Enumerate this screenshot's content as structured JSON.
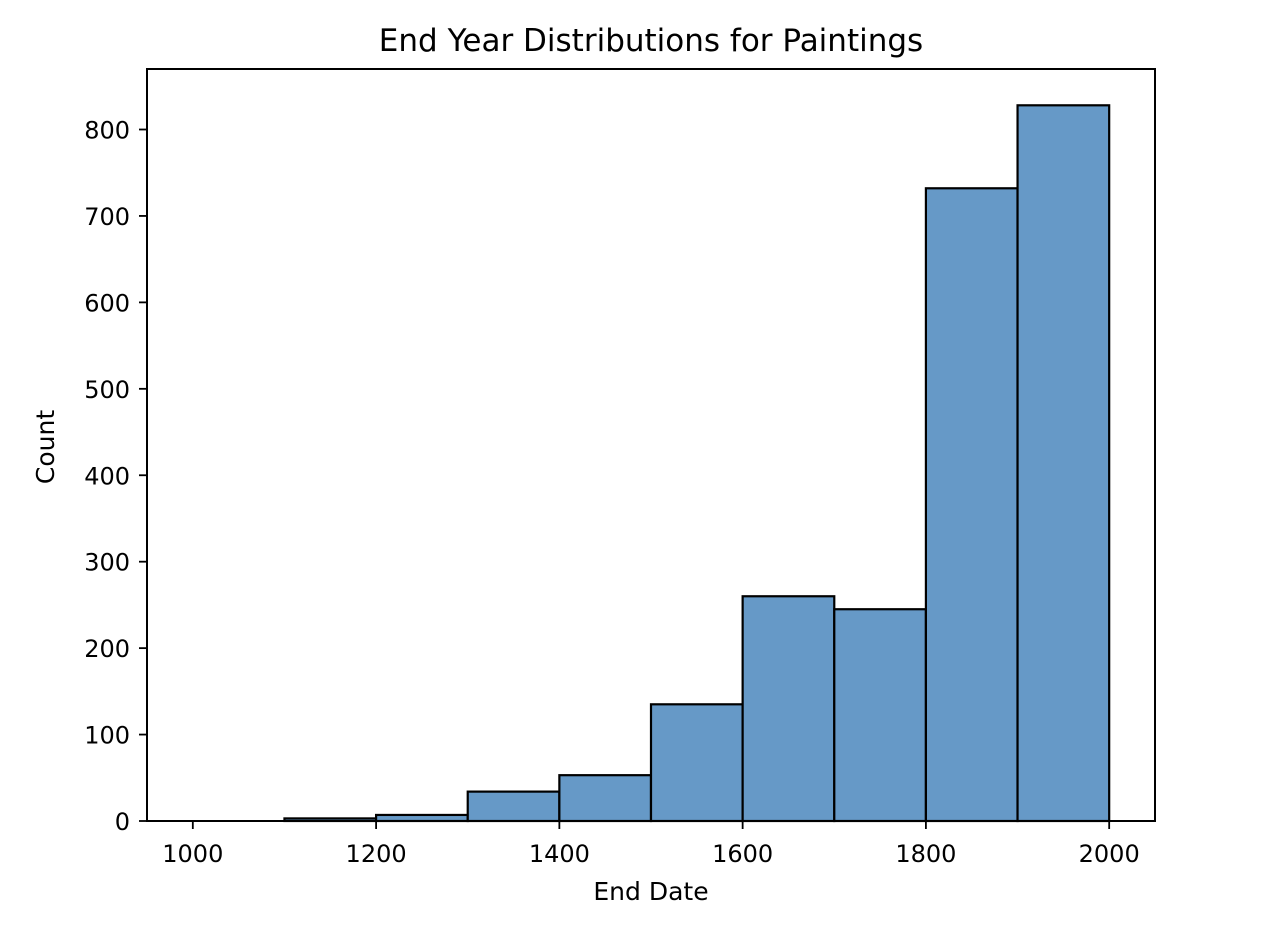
{
  "chart_data": {
    "type": "bar",
    "title": "End Year Distributions for Paintings",
    "xlabel": "End Date",
    "ylabel": "Count",
    "xlim": [
      950,
      2050
    ],
    "ylim": [
      0,
      870
    ],
    "xticks": [
      1000,
      1200,
      1400,
      1600,
      1800,
      2000
    ],
    "yticks": [
      0,
      100,
      200,
      300,
      400,
      500,
      600,
      700,
      800
    ],
    "bins": [
      {
        "start": 1000,
        "end": 1100,
        "count": 0
      },
      {
        "start": 1100,
        "end": 1200,
        "count": 3
      },
      {
        "start": 1200,
        "end": 1300,
        "count": 7
      },
      {
        "start": 1300,
        "end": 1400,
        "count": 34
      },
      {
        "start": 1400,
        "end": 1500,
        "count": 53
      },
      {
        "start": 1500,
        "end": 1600,
        "count": 135
      },
      {
        "start": 1600,
        "end": 1700,
        "count": 260
      },
      {
        "start": 1700,
        "end": 1800,
        "count": 245
      },
      {
        "start": 1800,
        "end": 1900,
        "count": 732
      },
      {
        "start": 1900,
        "end": 2000,
        "count": 828
      }
    ],
    "grid": false,
    "colors": {
      "bar_fill": "#6699c7",
      "bar_edge": "#000000"
    }
  }
}
